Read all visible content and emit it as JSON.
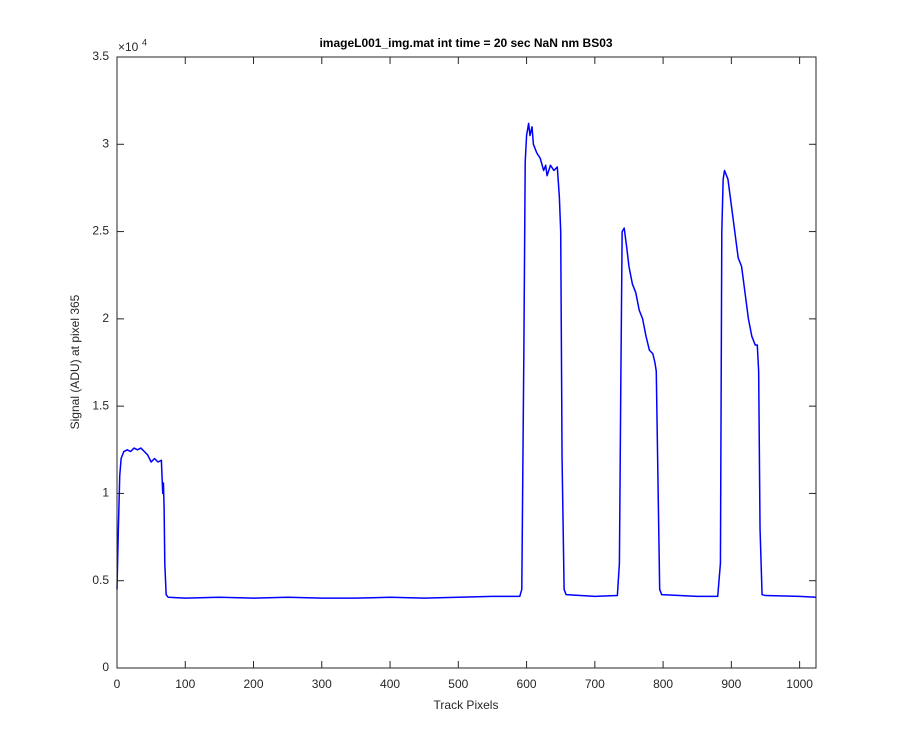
{
  "chart_data": {
    "type": "line",
    "title": "imageL001_img.mat int time = 20 sec  NaN nm BS03",
    "x_label": "Track Pixels",
    "y_label": "Signal (ADU) at pixel 365",
    "y_scale_base": "×10",
    "y_scale_exponent": "4",
    "xlim": [
      0,
      1024
    ],
    "ylim": [
      0,
      3.5
    ],
    "xticks": [
      0,
      100,
      200,
      300,
      400,
      500,
      600,
      700,
      800,
      900,
      1000
    ],
    "yticks": [
      0,
      0.5,
      1,
      1.5,
      2,
      2.5,
      3,
      3.5
    ],
    "grid": false,
    "series": [
      {
        "color": "#0000ff",
        "x": [
          0,
          2,
          4,
          6,
          10,
          15,
          20,
          25,
          30,
          35,
          40,
          45,
          50,
          55,
          60,
          65,
          67,
          68,
          69,
          70,
          72,
          75,
          100,
          150,
          200,
          250,
          300,
          350,
          400,
          450,
          500,
          550,
          590,
          593,
          596,
          598,
          600,
          603,
          605,
          608,
          610,
          615,
          620,
          625,
          628,
          630,
          635,
          640,
          645,
          648,
          650,
          652,
          655,
          658,
          700,
          733,
          736,
          738,
          740,
          743,
          747,
          750,
          755,
          760,
          765,
          770,
          775,
          780,
          785,
          788,
          790,
          792,
          795,
          798,
          850,
          880,
          884,
          886,
          888,
          890,
          895,
          900,
          905,
          910,
          915,
          920,
          925,
          930,
          935,
          938,
          940,
          942,
          945,
          950,
          1000,
          1024
        ],
        "values": [
          0.45,
          0.8,
          1.1,
          1.2,
          1.24,
          1.25,
          1.24,
          1.26,
          1.25,
          1.26,
          1.24,
          1.22,
          1.18,
          1.2,
          1.18,
          1.19,
          1.0,
          1.06,
          0.92,
          0.6,
          0.42,
          0.405,
          0.4,
          0.405,
          0.4,
          0.405,
          0.4,
          0.4,
          0.405,
          0.4,
          0.405,
          0.41,
          0.41,
          0.45,
          1.8,
          2.9,
          3.05,
          3.12,
          3.05,
          3.1,
          3.0,
          2.95,
          2.92,
          2.85,
          2.88,
          2.82,
          2.88,
          2.85,
          2.87,
          2.7,
          2.5,
          1.2,
          0.45,
          0.42,
          0.41,
          0.415,
          0.6,
          1.6,
          2.5,
          2.52,
          2.4,
          2.3,
          2.2,
          2.15,
          2.05,
          2.0,
          1.9,
          1.82,
          1.8,
          1.75,
          1.7,
          1.2,
          0.45,
          0.42,
          0.41,
          0.41,
          0.6,
          2.5,
          2.8,
          2.85,
          2.8,
          2.65,
          2.5,
          2.35,
          2.3,
          2.15,
          2.0,
          1.9,
          1.85,
          1.85,
          1.7,
          0.8,
          0.42,
          0.415,
          0.41,
          0.405
        ]
      }
    ]
  }
}
